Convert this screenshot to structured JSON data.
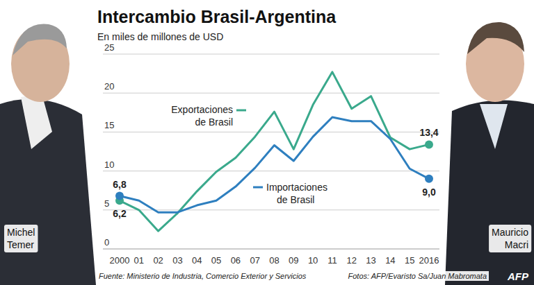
{
  "chart_data": {
    "type": "line",
    "title": "Intercambio Brasil-Argentina",
    "subtitle": "En miles de millones de USD",
    "categories": [
      "2000",
      "01",
      "02",
      "03",
      "04",
      "05",
      "06",
      "07",
      "08",
      "09",
      "10",
      "11",
      "12",
      "13",
      "14",
      "15",
      "2016"
    ],
    "series": [
      {
        "name": "Exportaciones de Brasil",
        "color": "#3aa98c",
        "values": [
          6.2,
          5.0,
          2.3,
          4.6,
          7.4,
          9.9,
          11.7,
          14.4,
          17.6,
          12.8,
          18.5,
          22.7,
          18.0,
          19.6,
          14.3,
          12.8,
          13.4
        ],
        "value_labels": [
          "6,2",
          null,
          null,
          null,
          null,
          null,
          null,
          null,
          null,
          null,
          null,
          null,
          null,
          null,
          null,
          null,
          "13,4"
        ]
      },
      {
        "name": "Importaciones de Brasil",
        "color": "#2e7fbf",
        "values": [
          6.8,
          6.2,
          4.7,
          4.7,
          5.6,
          6.2,
          8.0,
          10.4,
          13.3,
          11.3,
          14.4,
          16.9,
          16.4,
          16.4,
          14.1,
          10.3,
          9.0
        ],
        "value_labels": [
          "6,8",
          null,
          null,
          null,
          null,
          null,
          null,
          null,
          null,
          null,
          null,
          null,
          null,
          null,
          null,
          null,
          "9,0"
        ]
      }
    ],
    "ylim": [
      0,
      25
    ],
    "yticks": [
      0,
      5,
      10,
      15,
      20,
      25
    ],
    "grid": true,
    "data_labels": true,
    "marker": "circle",
    "source": "Fuente: Ministerio de Industria, Comercio Exterior y Servicios",
    "credit": "Fotos: AFP/Evaristo Sa/Juan Mabromata",
    "people": [
      "Michel Temer",
      "Mauricio Macri"
    ],
    "logo": "AFP"
  }
}
